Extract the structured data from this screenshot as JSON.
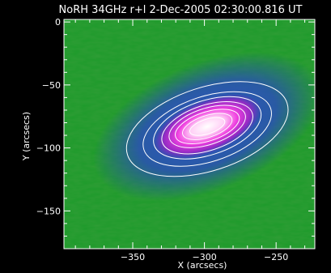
{
  "chart_data": {
    "type": "heatmap",
    "title": "NoRH 34GHz r+l  2-Dec-2005 02:30:00.816 UT",
    "xlabel": "X (arcsecs)",
    "ylabel": "Y (arcsecs)",
    "xlim": [
      -398,
      -223
    ],
    "ylim": [
      -180,
      2
    ],
    "x_ticks": [
      {
        "value": -350,
        "label": "−350"
      },
      {
        "value": -300,
        "label": "−300"
      },
      {
        "value": -250,
        "label": "−250"
      }
    ],
    "y_ticks": [
      {
        "value": 0,
        "label": "0"
      },
      {
        "value": -50,
        "label": "−50"
      },
      {
        "value": -100,
        "label": "−100"
      },
      {
        "value": -150,
        "label": "−150"
      }
    ],
    "source": {
      "x": -298,
      "y": -83,
      "sigma_major": 20,
      "sigma_minor": 11,
      "angle_deg": 22
    },
    "contours": [
      {
        "level": 0.08,
        "rx": 78,
        "ry": 46,
        "cx": -298,
        "cy": -85
      },
      {
        "level": 0.16,
        "rx": 62,
        "ry": 36,
        "cx": -298,
        "cy": -85
      },
      {
        "level": 0.25,
        "rx": 52,
        "ry": 30,
        "cx": -298,
        "cy": -84
      },
      {
        "level": 0.35,
        "rx": 44,
        "ry": 25,
        "cx": -298,
        "cy": -84
      },
      {
        "level": 0.45,
        "rx": 37,
        "ry": 20,
        "cx": -298,
        "cy": -83
      },
      {
        "level": 0.55,
        "rx": 31,
        "ry": 16,
        "cx": -298,
        "cy": -83
      },
      {
        "level": 0.68,
        "rx": 24,
        "ry": 12,
        "cx": -298,
        "cy": -83
      },
      {
        "level": 0.82,
        "rx": 17,
        "ry": 8,
        "cx": -298,
        "cy": -83
      }
    ],
    "colors": {
      "background": "#1c9a2a",
      "halo": "#2547b8",
      "core": "#e02ad0",
      "peak": "#ffffff",
      "contour": "#ffffff",
      "frame": "#ffffff"
    }
  }
}
